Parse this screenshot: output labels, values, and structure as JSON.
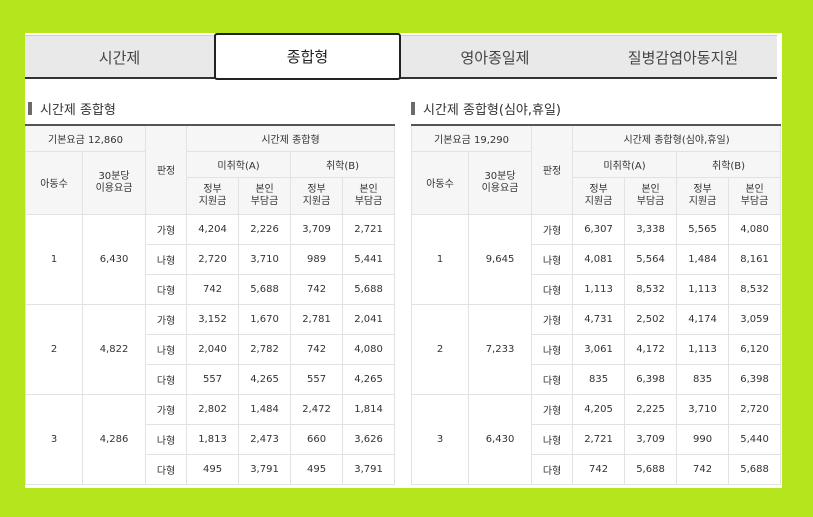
{
  "tabs": [
    {
      "label": "시간제",
      "active": false
    },
    {
      "label": "종합형",
      "active": true
    },
    {
      "label": "영아종일제",
      "active": false
    },
    {
      "label": "질병감염아동지원",
      "active": false
    }
  ],
  "left": {
    "title": "시간제 종합형",
    "base_fee": "기본요금 12,860",
    "group_header": "시간제 종합형",
    "col_children": "아동수",
    "col_fee_line1": "30분당",
    "col_fee_line2": "이용요금",
    "col_judge": "판정",
    "col_a": "미취학(A)",
    "col_b": "취학(B)",
    "col_gov_1": "정부",
    "col_gov_2": "지원금",
    "col_self_1": "본인",
    "col_self_2": "부담금",
    "groups": [
      {
        "count": "1",
        "fee": "6,430",
        "rows": [
          {
            "type": "가형",
            "a_gov": "4,204",
            "a_self": "2,226",
            "b_gov": "3,709",
            "b_self": "2,721"
          },
          {
            "type": "나형",
            "a_gov": "2,720",
            "a_self": "3,710",
            "b_gov": "989",
            "b_self": "5,441"
          },
          {
            "type": "다형",
            "a_gov": "742",
            "a_self": "5,688",
            "b_gov": "742",
            "b_self": "5,688"
          }
        ]
      },
      {
        "count": "2",
        "fee": "4,822",
        "rows": [
          {
            "type": "가형",
            "a_gov": "3,152",
            "a_self": "1,670",
            "b_gov": "2,781",
            "b_self": "2,041"
          },
          {
            "type": "나형",
            "a_gov": "2,040",
            "a_self": "2,782",
            "b_gov": "742",
            "b_self": "4,080"
          },
          {
            "type": "다형",
            "a_gov": "557",
            "a_self": "4,265",
            "b_gov": "557",
            "b_self": "4,265"
          }
        ]
      },
      {
        "count": "3",
        "fee": "4,286",
        "rows": [
          {
            "type": "가형",
            "a_gov": "2,802",
            "a_self": "1,484",
            "b_gov": "2,472",
            "b_self": "1,814"
          },
          {
            "type": "나형",
            "a_gov": "1,813",
            "a_self": "2,473",
            "b_gov": "660",
            "b_self": "3,626"
          },
          {
            "type": "다형",
            "a_gov": "495",
            "a_self": "3,791",
            "b_gov": "495",
            "b_self": "3,791"
          }
        ]
      }
    ]
  },
  "right": {
    "title": "시간제 종합형(심야,휴일)",
    "base_fee": "기본요금 19,290",
    "group_header": "시간제 종합형(심야,휴일)",
    "col_children": "아동수",
    "col_fee_line1": "30분당",
    "col_fee_line2": "이용요금",
    "col_judge": "판정",
    "col_a": "미취학(A)",
    "col_b": "취학(B)",
    "col_gov_1": "정부",
    "col_gov_2": "지원금",
    "col_self_1": "본인",
    "col_self_2": "부담금",
    "groups": [
      {
        "count": "1",
        "fee": "9,645",
        "rows": [
          {
            "type": "가형",
            "a_gov": "6,307",
            "a_self": "3,338",
            "b_gov": "5,565",
            "b_self": "4,080"
          },
          {
            "type": "나형",
            "a_gov": "4,081",
            "a_self": "5,564",
            "b_gov": "1,484",
            "b_self": "8,161"
          },
          {
            "type": "다형",
            "a_gov": "1,113",
            "a_self": "8,532",
            "b_gov": "1,113",
            "b_self": "8,532"
          }
        ]
      },
      {
        "count": "2",
        "fee": "7,233",
        "rows": [
          {
            "type": "가형",
            "a_gov": "4,731",
            "a_self": "2,502",
            "b_gov": "4,174",
            "b_self": "3,059"
          },
          {
            "type": "나형",
            "a_gov": "3,061",
            "a_self": "4,172",
            "b_gov": "1,113",
            "b_self": "6,120"
          },
          {
            "type": "다형",
            "a_gov": "835",
            "a_self": "6,398",
            "b_gov": "835",
            "b_self": "6,398"
          }
        ]
      },
      {
        "count": "3",
        "fee": "6,430",
        "rows": [
          {
            "type": "가형",
            "a_gov": "4,205",
            "a_self": "2,225",
            "b_gov": "3,710",
            "b_self": "2,720"
          },
          {
            "type": "나형",
            "a_gov": "2,721",
            "a_self": "3,709",
            "b_gov": "990",
            "b_self": "5,440"
          },
          {
            "type": "다형",
            "a_gov": "742",
            "a_self": "5,688",
            "b_gov": "742",
            "b_self": "5,688"
          }
        ]
      }
    ]
  }
}
